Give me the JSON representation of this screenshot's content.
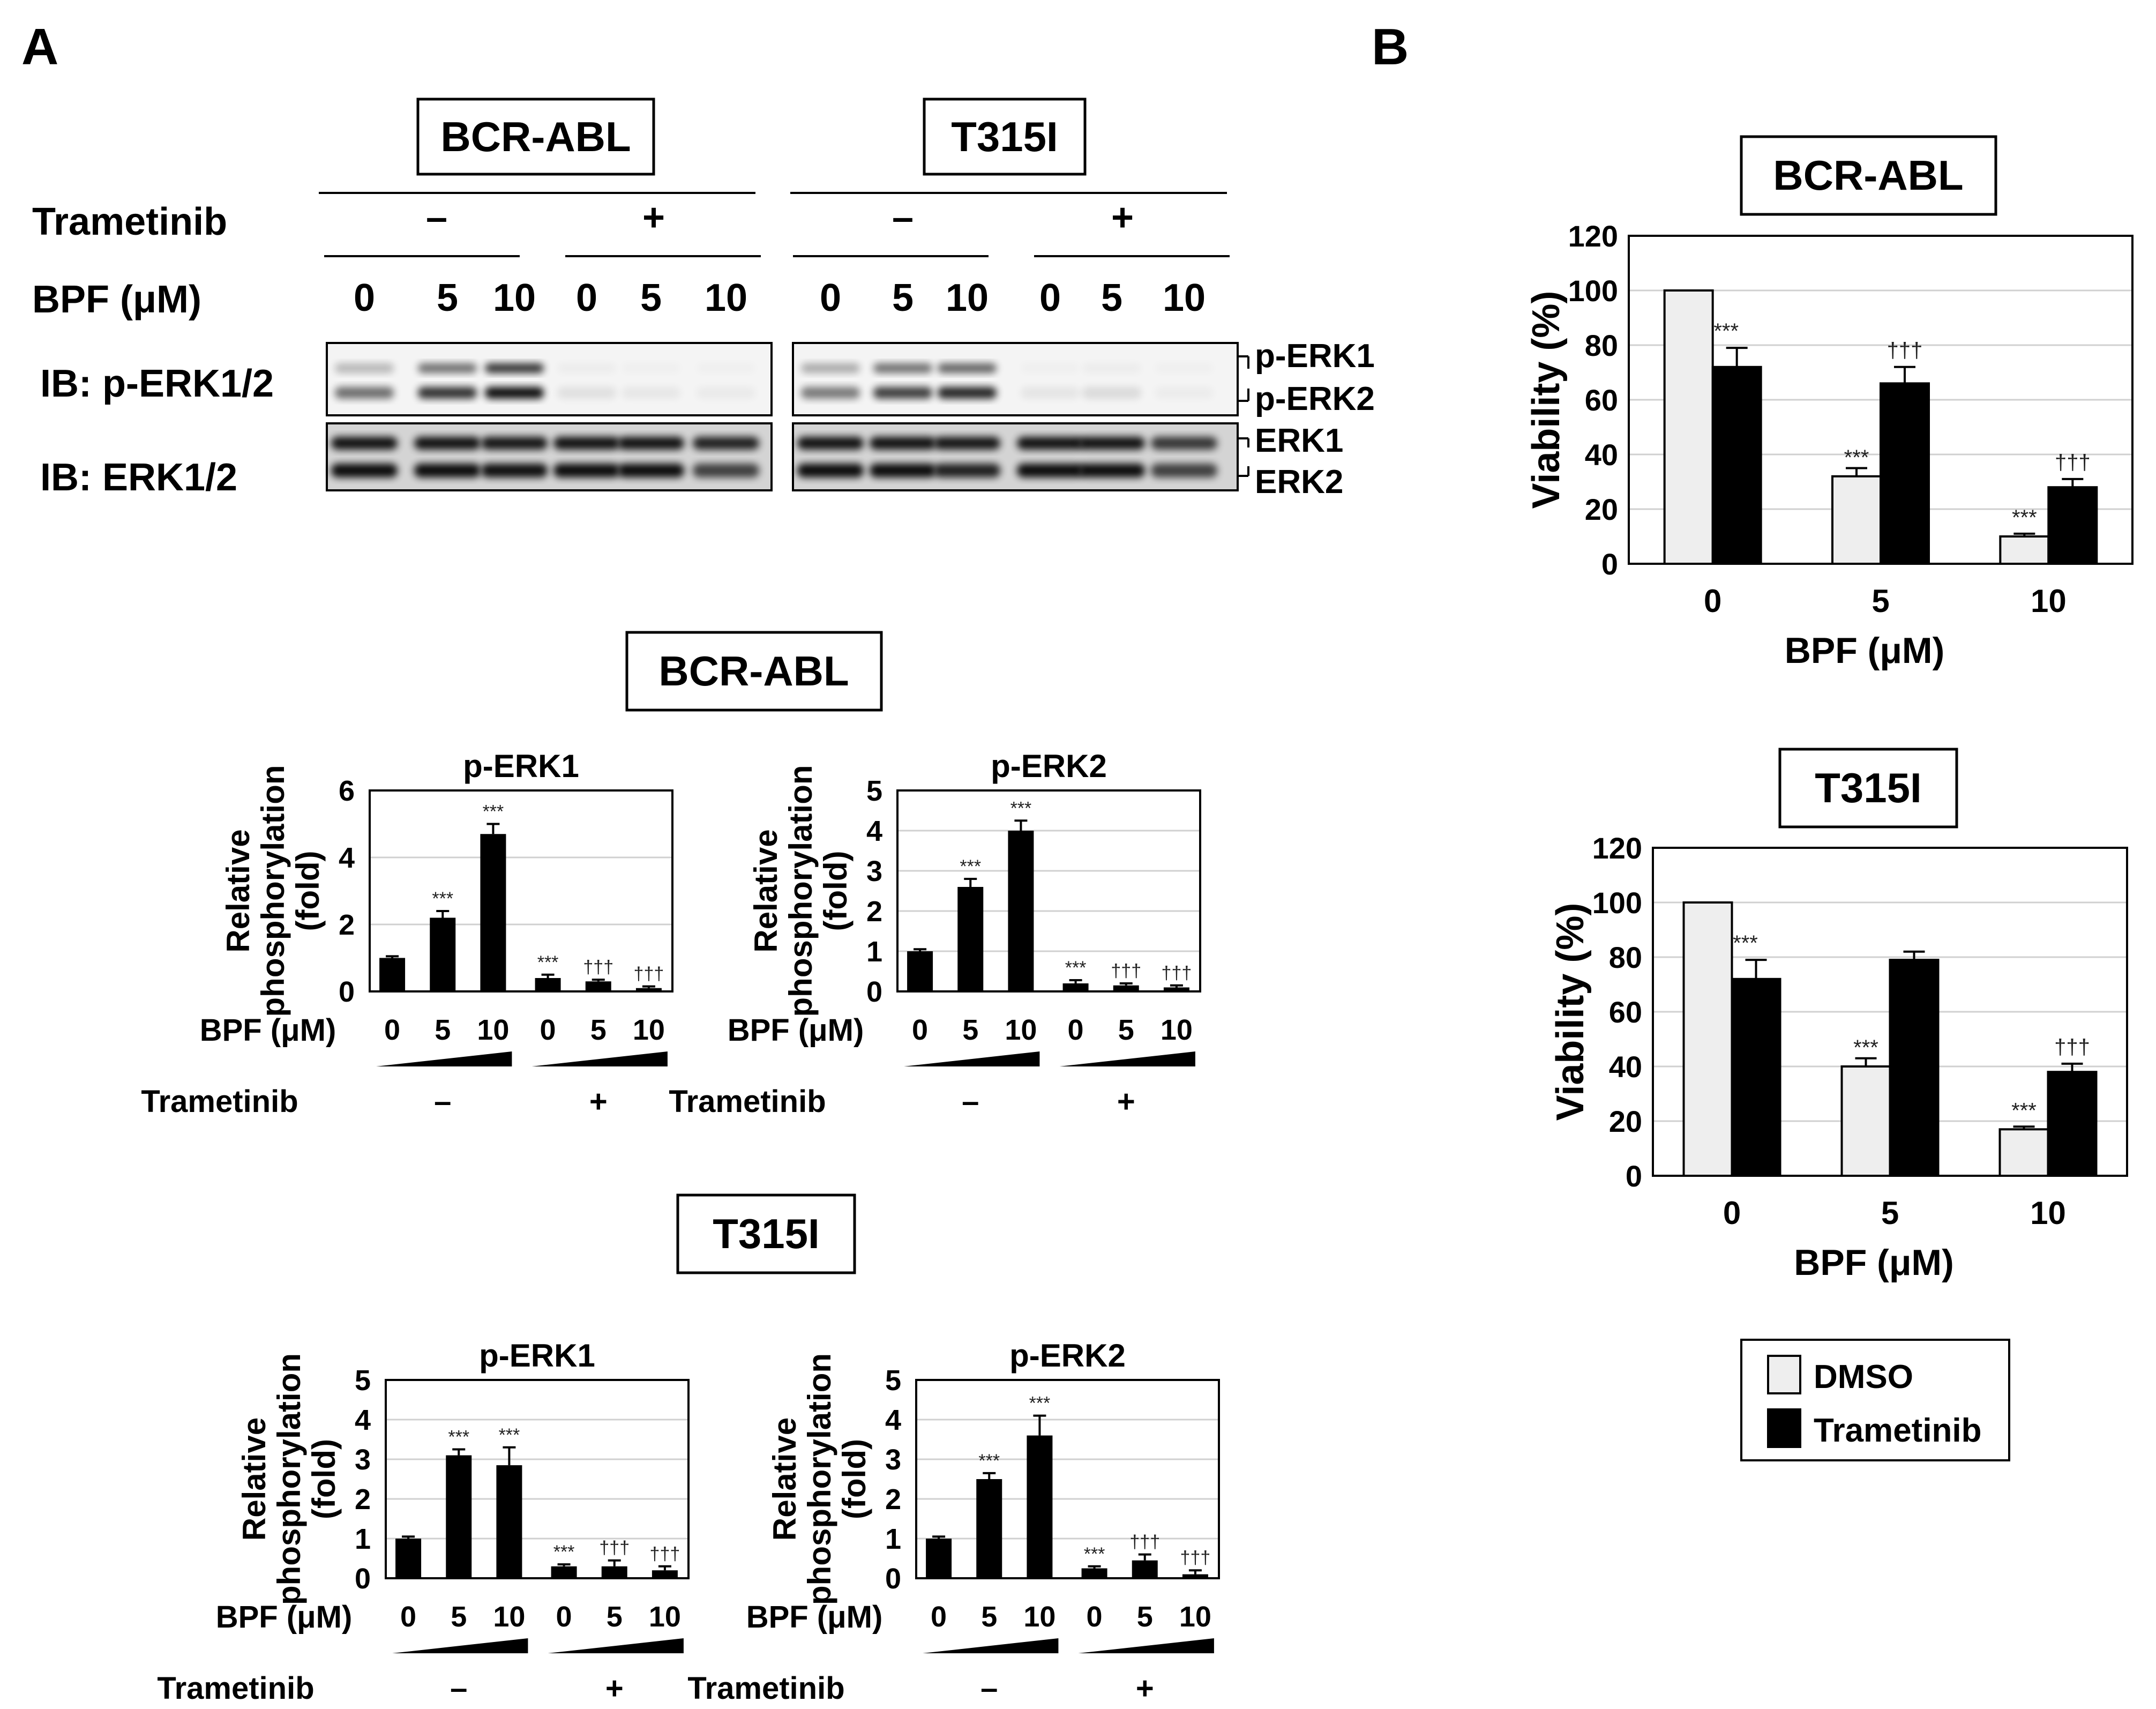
{
  "panels": {
    "A": "A",
    "B": "B"
  },
  "blot": {
    "groups": [
      "BCR-ABL",
      "T315I"
    ],
    "treatment_label": "Trametinib",
    "treatment_signs": [
      "–",
      "+",
      "–",
      "+"
    ],
    "dose_label": "BPF (μM)",
    "doses": [
      "0",
      "5",
      "10",
      "0",
      "5",
      "10",
      "0",
      "5",
      "10",
      "0",
      "5",
      "10"
    ],
    "ib_labels": [
      "IB: p-ERK1/2",
      "IB: ERK1/2"
    ],
    "band_labels": [
      "p-ERK1",
      "p-ERK2",
      "ERK1",
      "ERK2"
    ]
  },
  "bar_sections": [
    {
      "title": "BCR-ABL"
    },
    {
      "title": "T315I"
    }
  ],
  "bar_common": {
    "ylabel_line1": "Relative",
    "ylabel_line2": "phosphorylation",
    "ylabel_line3": "(fold)",
    "xlabel": "BPF (μM)",
    "doses": [
      "0",
      "5",
      "10",
      "0",
      "5",
      "10"
    ],
    "treatment_label": "Trametinib",
    "treatment_signs": [
      "–",
      "+"
    ]
  },
  "viability_common": {
    "ylabel": "Viability (%)",
    "xlabel": "BPF (μM)",
    "legend": [
      "DMSO",
      "Trametinib"
    ],
    "colors": {
      "DMSO": "#eeeeee",
      "Trametinib": "#000000"
    }
  },
  "chart_data": [
    {
      "id": "a-bcr-perk1",
      "type": "bar",
      "title": "p-ERK1",
      "categories": [
        "0",
        "5",
        "10",
        "0",
        "5",
        "10"
      ],
      "values": [
        1.0,
        2.2,
        4.7,
        0.4,
        0.3,
        0.1
      ],
      "errors": [
        0.05,
        0.2,
        0.3,
        0.1,
        0.05,
        0.05
      ],
      "significance": [
        "",
        "***",
        "***",
        "***",
        "†††",
        "†††"
      ],
      "ylim": [
        0,
        6
      ],
      "yticks": [
        0,
        2,
        4,
        6
      ]
    },
    {
      "id": "a-bcr-perk2",
      "type": "bar",
      "title": "p-ERK2",
      "categories": [
        "0",
        "5",
        "10",
        "0",
        "5",
        "10"
      ],
      "values": [
        1.0,
        2.6,
        4.0,
        0.2,
        0.15,
        0.1
      ],
      "errors": [
        0.05,
        0.2,
        0.25,
        0.08,
        0.05,
        0.05
      ],
      "significance": [
        "",
        "***",
        "***",
        "***",
        "†††",
        "†††"
      ],
      "ylim": [
        0,
        5
      ],
      "yticks": [
        0,
        1,
        2,
        3,
        4,
        5
      ]
    },
    {
      "id": "a-t315-perk1",
      "type": "bar",
      "title": "p-ERK1",
      "categories": [
        "0",
        "5",
        "10",
        "0",
        "5",
        "10"
      ],
      "values": [
        1.0,
        3.1,
        2.85,
        0.3,
        0.3,
        0.2
      ],
      "errors": [
        0.05,
        0.15,
        0.45,
        0.05,
        0.15,
        0.1
      ],
      "significance": [
        "",
        "***",
        "***",
        "***",
        "†††",
        "†††"
      ],
      "ylim": [
        0,
        5
      ],
      "yticks": [
        0,
        1,
        2,
        3,
        4,
        5
      ]
    },
    {
      "id": "a-t315-perk2",
      "type": "bar",
      "title": "p-ERK2",
      "categories": [
        "0",
        "5",
        "10",
        "0",
        "5",
        "10"
      ],
      "values": [
        1.0,
        2.5,
        3.6,
        0.25,
        0.45,
        0.1
      ],
      "errors": [
        0.05,
        0.15,
        0.5,
        0.05,
        0.15,
        0.1
      ],
      "significance": [
        "",
        "***",
        "***",
        "***",
        "†††",
        "†††"
      ],
      "ylim": [
        0,
        5
      ],
      "yticks": [
        0,
        1,
        2,
        3,
        4,
        5
      ]
    },
    {
      "id": "b-bcr-viability",
      "type": "bar",
      "title": "BCR-ABL",
      "categories": [
        "0",
        "5",
        "10"
      ],
      "series": [
        {
          "name": "DMSO",
          "values": [
            100,
            32,
            10
          ],
          "errors": [
            0,
            3,
            1
          ],
          "significance": [
            "",
            "***",
            "***"
          ]
        },
        {
          "name": "Trametinib",
          "values": [
            72,
            66,
            28
          ],
          "errors": [
            7,
            6,
            3
          ],
          "significance": [
            "***",
            "†††",
            "†††"
          ]
        }
      ],
      "ylim": [
        0,
        120
      ],
      "yticks": [
        0,
        20,
        40,
        60,
        80,
        100,
        120
      ]
    },
    {
      "id": "b-t315-viability",
      "type": "bar",
      "title": "T315I",
      "categories": [
        "0",
        "5",
        "10"
      ],
      "series": [
        {
          "name": "DMSO",
          "values": [
            100,
            40,
            17
          ],
          "errors": [
            0,
            3,
            1
          ],
          "significance": [
            "",
            "***",
            "***"
          ]
        },
        {
          "name": "Trametinib",
          "values": [
            72,
            79,
            38
          ],
          "errors": [
            7,
            3,
            3
          ],
          "significance": [
            "***",
            "",
            "†††"
          ]
        }
      ],
      "ylim": [
        0,
        120
      ],
      "yticks": [
        0,
        20,
        40,
        60,
        80,
        100,
        120
      ]
    }
  ]
}
